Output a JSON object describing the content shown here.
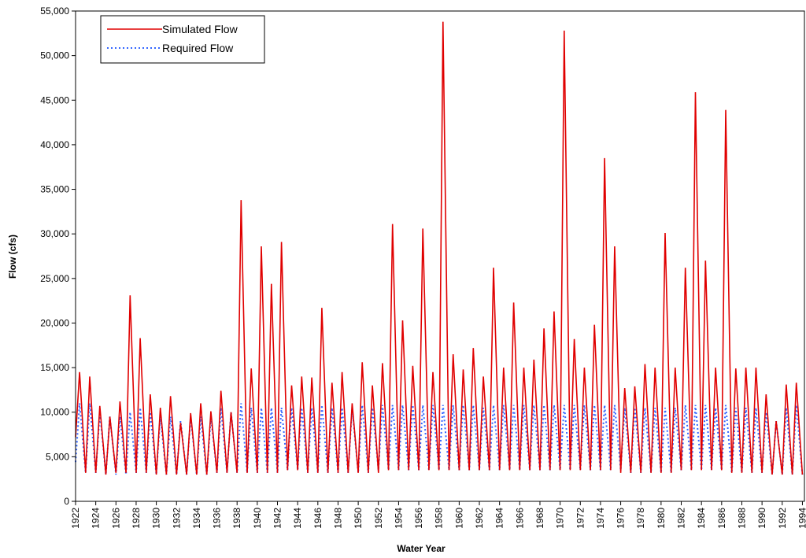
{
  "chart_data": {
    "type": "line",
    "x_label": "Water Year",
    "y_label": "Flow (cfs)",
    "x": [
      1922,
      1922.4,
      1923,
      1923.4,
      1924,
      1924.4,
      1925,
      1925.4,
      1926,
      1926.4,
      1927,
      1927.4,
      1928,
      1928.4,
      1929,
      1929.4,
      1930,
      1930.4,
      1931,
      1931.4,
      1932,
      1932.4,
      1933,
      1933.4,
      1934,
      1934.4,
      1935,
      1935.4,
      1936,
      1936.4,
      1937,
      1937.4,
      1938,
      1938.4,
      1939,
      1939.4,
      1940,
      1940.4,
      1941,
      1941.4,
      1942,
      1942.4,
      1943,
      1943.4,
      1944,
      1944.4,
      1945,
      1945.4,
      1946,
      1946.4,
      1947,
      1947.4,
      1948,
      1948.4,
      1949,
      1949.4,
      1950,
      1950.4,
      1951,
      1951.4,
      1952,
      1952.4,
      1953,
      1953.4,
      1954,
      1954.4,
      1955,
      1955.4,
      1956,
      1956.4,
      1957,
      1957.4,
      1958,
      1958.4,
      1959,
      1959.4,
      1960,
      1960.4,
      1961,
      1961.4,
      1962,
      1962.4,
      1963,
      1963.4,
      1964,
      1964.4,
      1965,
      1965.4,
      1966,
      1966.4,
      1967,
      1967.4,
      1968,
      1968.4,
      1969,
      1969.4,
      1970,
      1970.4,
      1971,
      1971.4,
      1972,
      1972.4,
      1973,
      1973.4,
      1974,
      1974.4,
      1975,
      1975.4,
      1976,
      1976.4,
      1977,
      1977.4,
      1978,
      1978.4,
      1979,
      1979.4,
      1980,
      1980.4,
      1981,
      1981.4,
      1982,
      1982.4,
      1983,
      1983.4,
      1984,
      1984.4,
      1985,
      1985.4,
      1986,
      1986.4,
      1987,
      1987.4,
      1988,
      1988.4,
      1989,
      1989.4,
      1990,
      1990.4,
      1991,
      1991.4,
      1992,
      1992.4,
      1993,
      1993.4,
      1994
    ],
    "series": [
      {
        "name": "Simulated Flow",
        "color": "#e00000",
        "dash": false,
        "values": [
          7200,
          14500,
          3200,
          14000,
          3200,
          10700,
          3000,
          9500,
          3200,
          11200,
          3200,
          23100,
          3200,
          18300,
          3200,
          12000,
          3000,
          10500,
          3000,
          11800,
          3000,
          8800,
          3000,
          9900,
          3000,
          11000,
          3000,
          10100,
          3200,
          12400,
          3200,
          10000,
          3200,
          33800,
          3200,
          14900,
          3200,
          28600,
          3200,
          24400,
          3200,
          29100,
          3500,
          13000,
          3500,
          14000,
          3200,
          13900,
          3200,
          21700,
          3200,
          13300,
          3200,
          14500,
          3200,
          11000,
          3200,
          15600,
          3200,
          13000,
          3200,
          15500,
          3500,
          31100,
          3500,
          20300,
          3500,
          15200,
          3500,
          30600,
          3500,
          14500,
          3500,
          53800,
          3500,
          16500,
          3500,
          14800,
          3500,
          17200,
          3500,
          14000,
          3500,
          26200,
          3500,
          15000,
          3500,
          22300,
          3500,
          15000,
          3500,
          15900,
          3500,
          19400,
          3500,
          21300,
          3500,
          52800,
          3500,
          18200,
          3500,
          15000,
          3500,
          19800,
          3500,
          38500,
          3500,
          28600,
          3200,
          12700,
          3200,
          12900,
          3200,
          15400,
          3200,
          15000,
          3200,
          30100,
          3200,
          15000,
          3500,
          26200,
          3500,
          45900,
          3500,
          27000,
          3500,
          15000,
          3500,
          43900,
          3200,
          14900,
          3200,
          15000,
          3200,
          15000,
          3200,
          12000,
          3000,
          9000,
          3000,
          13100,
          3000,
          13300,
          3000
        ]
      },
      {
        "name": "Required Flow",
        "color": "#3366ff",
        "dash": true,
        "values": [
          4400,
          11000,
          3200,
          11000,
          3200,
          10000,
          3000,
          9500,
          3000,
          9500,
          3000,
          10000,
          3200,
          10500,
          3200,
          10000,
          3000,
          9500,
          3000,
          9500,
          3000,
          9000,
          3000,
          9500,
          3000,
          9500,
          3000,
          9500,
          3200,
          10500,
          3200,
          10000,
          3200,
          11000,
          3200,
          10500,
          3200,
          10500,
          3200,
          10500,
          3200,
          10500,
          3500,
          10500,
          3500,
          10500,
          3200,
          10500,
          3200,
          10800,
          3200,
          10500,
          3200,
          10500,
          3200,
          10500,
          3200,
          10800,
          3200,
          10500,
          3500,
          10800,
          3500,
          10800,
          3500,
          10800,
          3500,
          10800,
          3500,
          10800,
          3500,
          10800,
          3500,
          10800,
          3500,
          10800,
          3500,
          10800,
          3500,
          10800,
          3500,
          10500,
          3500,
          10800,
          3500,
          10800,
          3500,
          10800,
          3500,
          10800,
          3500,
          10800,
          3500,
          10800,
          3500,
          10800,
          3500,
          10800,
          3500,
          10800,
          3500,
          10800,
          3500,
          10800,
          3500,
          10800,
          3500,
          10800,
          3500,
          10500,
          3200,
          10500,
          3200,
          10500,
          3200,
          10500,
          3200,
          10500,
          3200,
          10500,
          3500,
          10800,
          3500,
          10800,
          3500,
          10800,
          3500,
          10500,
          3500,
          10800,
          3200,
          10500,
          3200,
          10500,
          3200,
          10500,
          3200,
          10000,
          3000,
          9000,
          3000,
          10500,
          3000,
          10800,
          3000
        ]
      }
    ],
    "xlim": [
      1922,
      1994.2
    ],
    "xticks": [
      1922,
      1924,
      1926,
      1928,
      1930,
      1932,
      1934,
      1936,
      1938,
      1940,
      1942,
      1944,
      1946,
      1948,
      1950,
      1952,
      1954,
      1956,
      1958,
      1960,
      1962,
      1964,
      1966,
      1968,
      1970,
      1972,
      1974,
      1976,
      1978,
      1980,
      1982,
      1984,
      1986,
      1988,
      1990,
      1992,
      1994
    ],
    "ylim": [
      0,
      55000
    ],
    "yticks": [
      0,
      {
        "value": 5000,
        "label": "5,000"
      },
      {
        "value": 10000,
        "label": "10,000"
      },
      {
        "value": 15000,
        "label": "15,000"
      },
      {
        "value": 20000,
        "label": "20,000"
      },
      {
        "value": 25000,
        "label": "25,000"
      },
      {
        "value": 30000,
        "label": "30,000"
      },
      {
        "value": 35000,
        "label": "35,000"
      },
      {
        "value": 40000,
        "label": "40,000"
      },
      {
        "value": 45000,
        "label": "45,000"
      },
      {
        "value": 50000,
        "label": "50,000"
      },
      {
        "value": 55000,
        "label": "55,000"
      }
    ],
    "legend": "upper-left"
  }
}
